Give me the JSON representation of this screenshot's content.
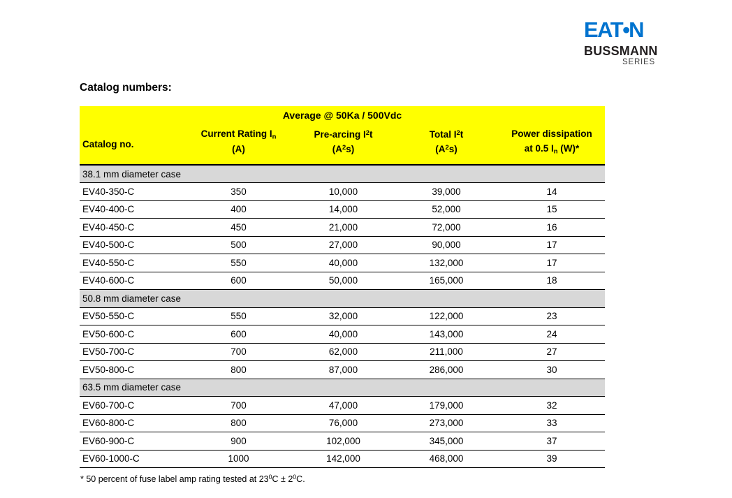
{
  "logo": {
    "eaton_left": "EAT",
    "eaton_dot": "•",
    "eaton_right": "N",
    "bussmann": "BUSSMANN",
    "series": "SERIES",
    "brand_blue": "#0073CF"
  },
  "page": {
    "title": "Catalog numbers:"
  },
  "table": {
    "banner": "Average @ 50Ka / 500Vdc",
    "colors": {
      "header_yellow": "#FFFF00",
      "section_gray": "#D8D8D8",
      "border_black": "#000000"
    },
    "columns": [
      {
        "name": "catalog-no",
        "line1": [],
        "line2": [
          {
            "t": "Catalog no."
          }
        ]
      },
      {
        "name": "current-rating",
        "line1": [
          {
            "t": "Current Rating I"
          },
          {
            "t": "n",
            "s": "sub"
          }
        ],
        "line2": [
          {
            "t": "(A)"
          }
        ]
      },
      {
        "name": "pre-arcing-i2t",
        "line1": [
          {
            "t": "Pre-arcing I"
          },
          {
            "t": "2",
            "s": "sup"
          },
          {
            "t": "t"
          }
        ],
        "line2": [
          {
            "t": "(A"
          },
          {
            "t": "2",
            "s": "sup"
          },
          {
            "t": "s)"
          }
        ]
      },
      {
        "name": "total-i2t",
        "line1": [
          {
            "t": "Total I"
          },
          {
            "t": "2",
            "s": "sup"
          },
          {
            "t": "t"
          }
        ],
        "line2": [
          {
            "t": "(A"
          },
          {
            "t": "2",
            "s": "sup"
          },
          {
            "t": "s)"
          }
        ]
      },
      {
        "name": "power-dissipation",
        "line1": [
          {
            "t": "Power dissipation"
          }
        ],
        "line2": [
          {
            "t": "at 0.5 I"
          },
          {
            "t": "n",
            "s": "sub"
          },
          {
            "t": " (W)*"
          }
        ]
      }
    ],
    "sections": [
      {
        "title": "38.1 mm diameter case",
        "rows": [
          [
            "EV40-350-C",
            "350",
            "10,000",
            "39,000",
            "14"
          ],
          [
            "EV40-400-C",
            "400",
            "14,000",
            "52,000",
            "15"
          ],
          [
            "EV40-450-C",
            "450",
            "21,000",
            "72,000",
            "16"
          ],
          [
            "EV40-500-C",
            "500",
            "27,000",
            "90,000",
            "17"
          ],
          [
            "EV40-550-C",
            "550",
            "40,000",
            "132,000",
            "17"
          ],
          [
            "EV40-600-C",
            "600",
            "50,000",
            "165,000",
            "18"
          ]
        ]
      },
      {
        "title": "50.8 mm diameter case",
        "rows": [
          [
            "EV50-550-C",
            "550",
            "32,000",
            "122,000",
            "23"
          ],
          [
            "EV50-600-C",
            "600",
            "40,000",
            "143,000",
            "24"
          ],
          [
            "EV50-700-C",
            "700",
            "62,000",
            "211,000",
            "27"
          ],
          [
            "EV50-800-C",
            "800",
            "87,000",
            "286,000",
            "30"
          ]
        ]
      },
      {
        "title": "63.5 mm diameter case",
        "rows": [
          [
            "EV60-700-C",
            "700",
            "47,000",
            "179,000",
            "32"
          ],
          [
            "EV60-800-C",
            "800",
            "76,000",
            "273,000",
            "33"
          ],
          [
            "EV60-900-C",
            "900",
            "102,000",
            "345,000",
            "37"
          ],
          [
            "EV60-1000-C",
            "1000",
            "142,000",
            "468,000",
            "39"
          ]
        ]
      }
    ],
    "footnote": [
      {
        "t": "* 50 percent of fuse label amp rating tested at 23"
      },
      {
        "t": "0",
        "s": "sup"
      },
      {
        "t": "C ± 2"
      },
      {
        "t": "0",
        "s": "sup"
      },
      {
        "t": "C."
      }
    ]
  }
}
